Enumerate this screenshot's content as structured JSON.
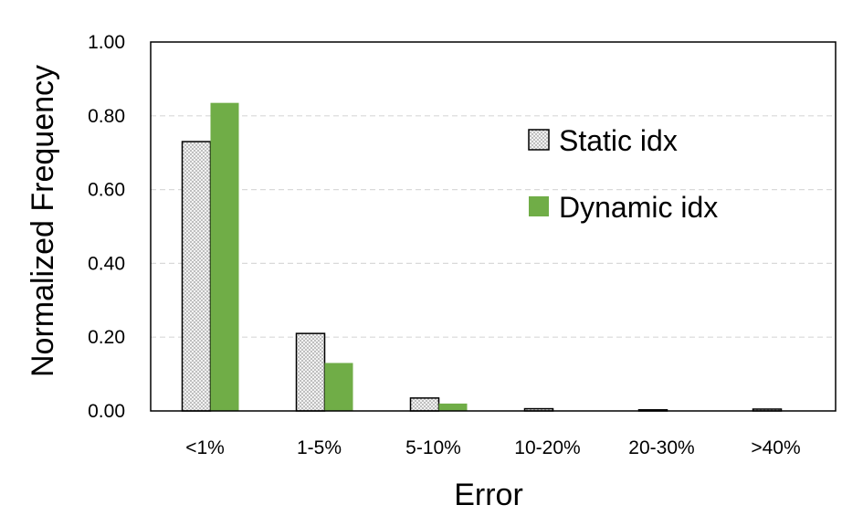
{
  "chart_data": {
    "type": "bar",
    "categories": [
      "<1%",
      "1-5%",
      "5-10%",
      "10-20%",
      "20-30%",
      ">40%"
    ],
    "series": [
      {
        "name": "Static idx",
        "values": [
          0.73,
          0.21,
          0.035,
          0.006,
          0.003,
          0.005
        ],
        "color": "#d9d9d9",
        "pattern": "dotted-grey"
      },
      {
        "name": "Dynamic idx",
        "values": [
          0.835,
          0.13,
          0.02,
          0.0,
          0.0,
          0.0
        ],
        "color": "#70ad47"
      }
    ],
    "title": "",
    "xlabel": "Error",
    "ylabel": "Normalized Frequency",
    "ylim": [
      0,
      1.0
    ],
    "yticks": [
      0.0,
      0.2,
      0.4,
      0.6,
      0.8,
      1.0
    ],
    "ytick_labels": [
      "0.00",
      "0.20",
      "0.40",
      "0.60",
      "0.80",
      "1.00"
    ],
    "grid": "horizontal-dashed",
    "legend_position": "top-right"
  }
}
